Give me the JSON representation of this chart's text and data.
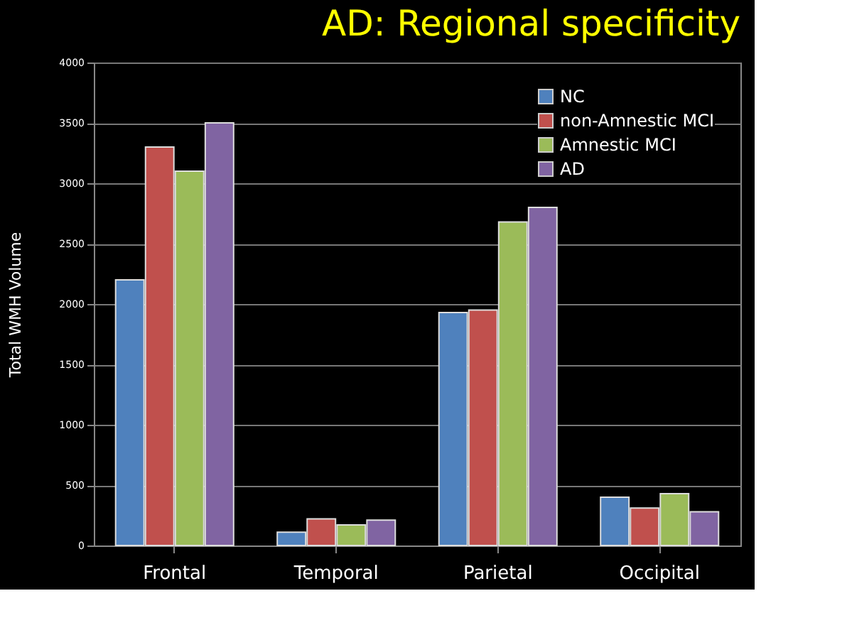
{
  "chart_data": {
    "type": "bar",
    "title": "AD: Regional specificity",
    "ylabel": "Total WMH Volume",
    "categories": [
      "Frontal",
      "Temporal",
      "Parietal",
      "Occipital"
    ],
    "series": [
      {
        "name": "NC",
        "color": "#4f81bd",
        "values": [
          2200,
          110,
          1930,
          400
        ]
      },
      {
        "name": "non-Amnestic MCI",
        "color": "#c0504d",
        "values": [
          3300,
          220,
          1950,
          310
        ]
      },
      {
        "name": "Amnestic MCI",
        "color": "#9bbb59",
        "values": [
          3100,
          170,
          2680,
          430
        ]
      },
      {
        "name": "AD",
        "color": "#8064a2",
        "values": [
          3500,
          210,
          2800,
          280
        ]
      }
    ],
    "ylim": [
      0,
      4000
    ],
    "yticks": [
      0,
      500,
      1000,
      1500,
      2000,
      2500,
      3000,
      3500,
      4000
    ],
    "grid": "y",
    "legend": "top right"
  }
}
